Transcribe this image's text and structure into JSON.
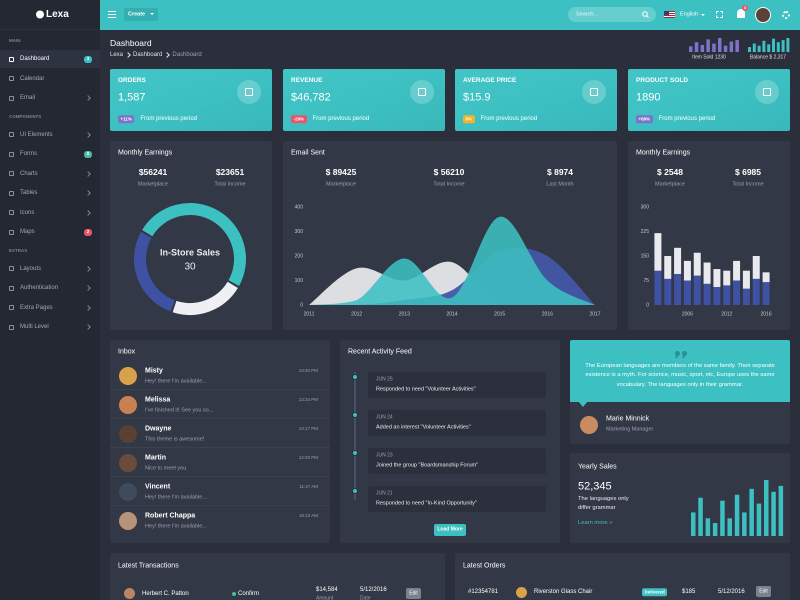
{
  "sidebar": {
    "logo": "Lexa",
    "sections": [
      {
        "title": "MAIN",
        "items": [
          {
            "label": "Dashboard",
            "badge": "3",
            "badge_color": "#3dc0c2"
          },
          {
            "label": "Calendar"
          },
          {
            "label": "Email"
          }
        ]
      },
      {
        "title": "COMPONENTS",
        "items": [
          {
            "label": "UI Elements"
          },
          {
            "label": "Forms",
            "badge": "8",
            "badge_color": "#47bd9a"
          },
          {
            "label": "Charts"
          },
          {
            "label": "Tables"
          },
          {
            "label": "Icons"
          },
          {
            "label": "Maps",
            "badge": "2",
            "badge_color": "#ec536c"
          }
        ]
      },
      {
        "title": "EXTRAS",
        "items": [
          {
            "label": "Layouts"
          },
          {
            "label": "Authentication"
          },
          {
            "label": "Extra Pages"
          },
          {
            "label": "Multi Level"
          }
        ]
      }
    ]
  },
  "topbar": {
    "create": "Create",
    "search": "Search...",
    "language": "English",
    "notifications": "3"
  },
  "header": {
    "title": "Dashboard",
    "breadcrumb": [
      "Lexa",
      "Dashboard",
      "Dashboard"
    ],
    "mini_charts": [
      {
        "label": "Item Sold 1230",
        "chart_data": {
          "type": "bar",
          "values": [
            40,
            70,
            50,
            90,
            60,
            100,
            45,
            75,
            85
          ],
          "color": "#7f73c9"
        }
      },
      {
        "label": "Balance $ 2,317",
        "chart_data": {
          "type": "bar",
          "values": [
            35,
            60,
            45,
            80,
            55,
            95,
            70,
            85,
            100
          ],
          "color": "#3dc0c2"
        }
      }
    ]
  },
  "stats": [
    {
      "title": "ORDERS",
      "value": "1,587",
      "badge": "+11%",
      "badge_color": "#7f73c9",
      "note": "From previous period"
    },
    {
      "title": "REVENUE",
      "value": "$46,782",
      "badge": "-29%",
      "badge_color": "#ec536c",
      "note": "From previous period"
    },
    {
      "title": "AVERAGE PRICE",
      "value": "$15.9",
      "badge": "0%",
      "badge_color": "#f5b225",
      "note": "From previous period"
    },
    {
      "title": "PRODUCT SOLD",
      "value": "1890",
      "badge": "+89%",
      "badge_color": "#7f73c9",
      "note": "From previous period"
    }
  ],
  "monthly_earnings": {
    "title": "Monthly Earnings",
    "figures": [
      {
        "value": "$56241",
        "label": "Marketplace"
      },
      {
        "value": "$23651",
        "label": "Total Income"
      }
    ],
    "chart_data": {
      "type": "donut",
      "center_label": "In-Store Sales",
      "center_value": 30,
      "values": [
        50,
        22,
        28
      ],
      "colors": [
        "#3dc0c2",
        "#eef0f3",
        "#3f51a3"
      ]
    }
  },
  "email_sent": {
    "title": "Email Sent",
    "figures": [
      {
        "value": "$ 89425",
        "label": "Marketplace"
      },
      {
        "value": "$ 56210",
        "label": "Total Income"
      },
      {
        "value": "$ 8974",
        "label": "Last Month"
      }
    ],
    "chart_data": {
      "type": "area",
      "x": [
        2011,
        2012,
        2013,
        2014,
        2015,
        2016,
        2017
      ],
      "xlim": [
        2011,
        2017
      ],
      "xticks": [
        2011,
        2012,
        2013,
        2014,
        2015,
        2016,
        2017
      ],
      "ylim": [
        0,
        400
      ],
      "yticks": [
        0,
        100,
        200,
        300,
        400
      ],
      "grid": false,
      "series": [
        {
          "color": "#e6e7eb",
          "values": [
            0,
            150,
            100,
            175,
            0,
            0,
            0
          ]
        },
        {
          "color": "#4256a6",
          "values": [
            0,
            0,
            20,
            60,
            220,
            200,
            0
          ]
        },
        {
          "color": "#3cc0c2",
          "values": [
            0,
            20,
            190,
            30,
            360,
            100,
            0
          ]
        }
      ]
    }
  },
  "monthly_earnings_2": {
    "title": "Monthly Earnings",
    "figures": [
      {
        "value": "$ 2548",
        "label": "Marketplace"
      },
      {
        "value": "$ 6985",
        "label": "Total Income"
      }
    ],
    "chart_data": {
      "type": "stacked_bar",
      "categories": [
        null,
        null,
        null,
        "2006",
        null,
        null,
        null,
        "2012",
        null,
        null,
        null,
        "2016"
      ],
      "ylim": [
        0,
        300
      ],
      "yticks": [
        0,
        75,
        150,
        225,
        300
      ],
      "grid": false,
      "series": [
        {
          "color": "#3f51a3",
          "values": [
            105,
            80,
            95,
            75,
            90,
            65,
            55,
            60,
            75,
            50,
            80,
            70
          ]
        },
        {
          "color": "#e8eaee",
          "values": [
            115,
            70,
            80,
            60,
            70,
            65,
            55,
            45,
            60,
            55,
            70,
            30
          ]
        }
      ]
    }
  },
  "inbox": {
    "title": "Inbox",
    "messages": [
      {
        "name": "Misty",
        "text": "Hey! there I'm available...",
        "time": "13:40 PM"
      },
      {
        "name": "Melissa",
        "text": "I've finished it! See you so...",
        "time": "13:34 PM"
      },
      {
        "name": "Dwayne",
        "text": "This theme is awesome!",
        "time": "13:17 PM"
      },
      {
        "name": "Martin",
        "text": "Nice to meet you",
        "time": "12:20 PM"
      },
      {
        "name": "Vincent",
        "text": "Hey! there I'm available...",
        "time": "11:47 AM"
      },
      {
        "name": "Robert Chappa",
        "text": "Hey! there I'm available...",
        "time": "10:12 AM"
      }
    ]
  },
  "activity": {
    "title": "Recent Activity Feed",
    "items": [
      {
        "date": "JUN 25",
        "text": "Responded to need \"Volunteer Activities\""
      },
      {
        "date": "JUN 24",
        "text": "Added an interest \"Volunteer Activities\""
      },
      {
        "date": "JUN 23",
        "text": "Joined the group \"Boardsmanship Forum\""
      },
      {
        "date": "JUN 21",
        "text": "Responded to need \"In-Kind Opportunity\""
      }
    ],
    "button": "Load More"
  },
  "testimonial": {
    "quote": "The European languages are members of the same family. Their separate existence is a myth. For science, music, sport, etc, Europe uses the same vocabulary. The languages only in their grammar.",
    "name": "Marie Minnick",
    "role": "Marketing Manager"
  },
  "yearly_sales": {
    "title": "Yearly Sales",
    "value": "52,345",
    "text": "The languages only differ grammar",
    "link": "Learn more »",
    "chart_data": {
      "type": "bar",
      "values": [
        40,
        65,
        30,
        22,
        60,
        30,
        70,
        40,
        80,
        55,
        95,
        75,
        85
      ],
      "color": "#3dc0c2"
    }
  },
  "transactions": {
    "title": "Latest Transactions",
    "rows": [
      {
        "name": "Herbert C. Patton",
        "status": "Confirm",
        "amount": "$14,584",
        "amount_label": "Amount",
        "date": "5/12/2016",
        "date_label": "Date",
        "action": "Edit"
      }
    ]
  },
  "orders": {
    "title": "Latest Orders",
    "rows": [
      {
        "id": "#12354781",
        "product": "Riverston Glass Chair",
        "status": "Delivered",
        "amount": "$185",
        "date": "5/12/2016",
        "action": "Edit"
      }
    ]
  }
}
